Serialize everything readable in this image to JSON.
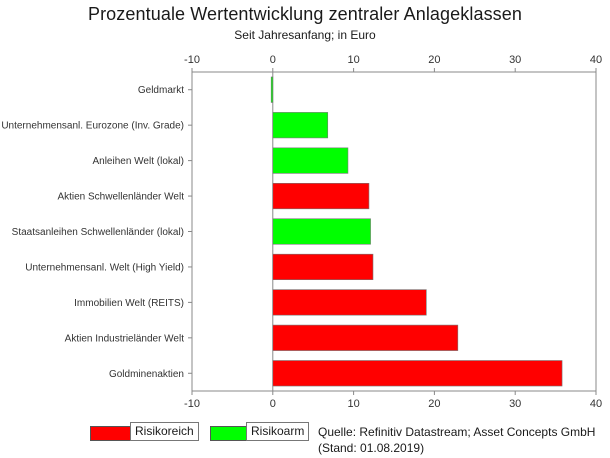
{
  "colors": {
    "risikoreich": "#ff0000",
    "risikoarm": "#00ff00"
  },
  "legend": {
    "risikoreich": "Risikoreich",
    "risikoarm": "Risikoarm"
  },
  "source": {
    "line1": "Quelle: Refinitiv Datastream; Asset Concepts GmbH",
    "line2": "(Stand: 01.08.2019)"
  },
  "chart_data": {
    "type": "bar",
    "orientation": "horizontal",
    "title": "Prozentuale Wertentwicklung zentraler Anlageklassen",
    "subtitle": "Seit Jahresanfang; in Euro",
    "xlim": [
      -10,
      40
    ],
    "xticks": [
      "-10",
      "0",
      "10",
      "20",
      "30",
      "40"
    ],
    "grid": false,
    "categories": [
      "Geldmarkt",
      "Unternehmensanl. Eurozone (Inv. Grade)",
      "Anleihen Welt (lokal)",
      "Aktien Schwellenländer Welt",
      "Staatsanleihen Schwellenländer (lokal)",
      "Unternehmensanl. Welt (High Yield)",
      "Immobilien Welt (REITS)",
      "Aktien Industrieländer Welt",
      "Goldminenaktien"
    ],
    "values": [
      -0.2,
      6.8,
      9.3,
      11.9,
      12.1,
      12.4,
      19.0,
      22.9,
      35.8
    ],
    "risk": [
      "risikoarm",
      "risikoarm",
      "risikoarm",
      "risikoreich",
      "risikoarm",
      "risikoreich",
      "risikoreich",
      "risikoreich",
      "risikoreich"
    ]
  }
}
